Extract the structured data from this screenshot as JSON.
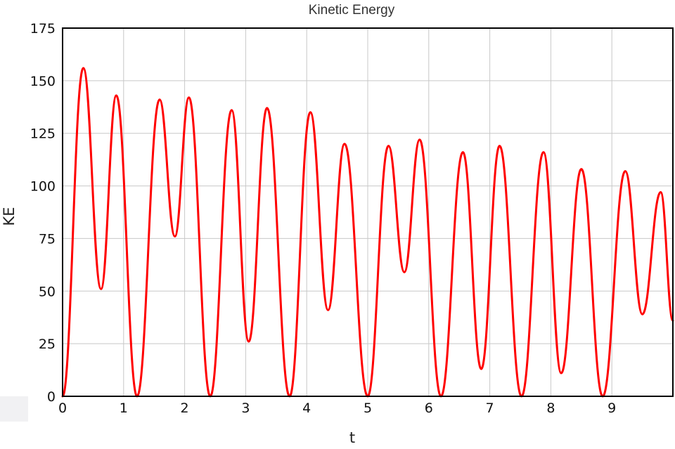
{
  "chart_data": {
    "type": "line",
    "title": "Kinetic Energy",
    "xlabel": "t",
    "ylabel": "KE",
    "xlim": [
      0,
      10
    ],
    "ylim": [
      0,
      175
    ],
    "xticks": [
      0,
      1,
      2,
      3,
      4,
      5,
      6,
      7,
      8,
      9
    ],
    "yticks": [
      0,
      25,
      50,
      75,
      100,
      125,
      150,
      175
    ],
    "grid": true,
    "series_color": "#ff0000",
    "series": [
      {
        "name": "",
        "x": [
          0,
          0.34,
          0.63,
          0.88,
          1.22,
          1.59,
          1.84,
          2.07,
          2.42,
          2.77,
          3.05,
          3.35,
          3.72,
          4.06,
          4.35,
          4.62,
          5.0,
          5.34,
          5.6,
          5.85,
          6.2,
          6.56,
          6.86,
          7.16,
          7.52,
          7.88,
          8.17,
          8.5,
          8.85,
          9.22,
          9.5,
          9.8,
          10.0
        ],
        "values": [
          0,
          156,
          51,
          143,
          0,
          141,
          76,
          142,
          0,
          136,
          26,
          137,
          0,
          135,
          41,
          120,
          0,
          119,
          59,
          122,
          0,
          116,
          13,
          119,
          0,
          116,
          11,
          108,
          0,
          107,
          39,
          97,
          36
        ]
      }
    ]
  }
}
